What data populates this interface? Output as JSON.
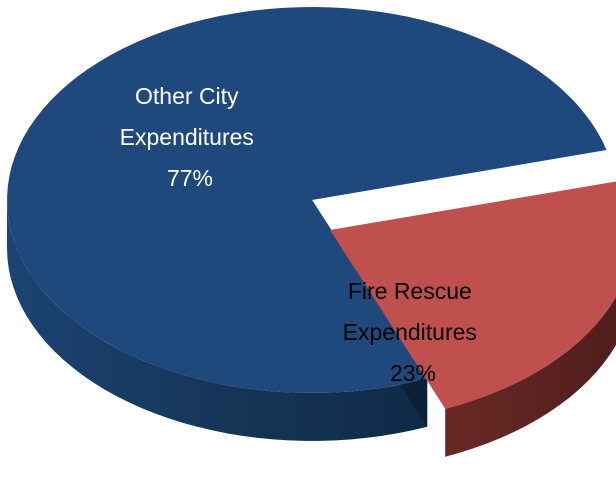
{
  "chart_data": {
    "type": "pie",
    "style": "3d-exploded",
    "slices": [
      {
        "label_lines": [
          "Other City",
          "Expenditures"
        ],
        "percent_label": "77%",
        "value": 77,
        "top_color": "#1F497D",
        "side_color": "#163658",
        "label_color": "#FFFFFF"
      },
      {
        "label_lines": [
          "Fire Rescue",
          "Expenditures"
        ],
        "percent_label": "23%",
        "value": 23,
        "top_color": "#C0504D",
        "side_color": "#5C2220",
        "label_color": "#000000",
        "exploded": true
      }
    ]
  }
}
